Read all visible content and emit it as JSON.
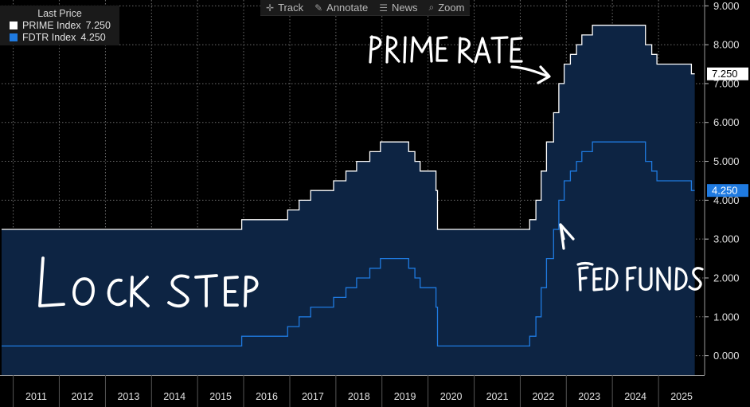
{
  "toolbar": {
    "items": [
      {
        "label": "Track",
        "icon": "crosshair-icon"
      },
      {
        "label": "Annotate",
        "icon": "pencil-icon"
      },
      {
        "label": "News",
        "icon": "news-icon"
      },
      {
        "label": "Zoom",
        "icon": "magnifier-icon"
      }
    ]
  },
  "legend": {
    "title": "Last Price",
    "entries": [
      {
        "name": "PRIME Index",
        "value": "7.250",
        "color": "#ffffff"
      },
      {
        "name": "FDTR Index",
        "value": "4.250",
        "color": "#1f7ae0"
      }
    ]
  },
  "annotations": {
    "prime_rate": "PRIME RATE",
    "fed_funds": "FED FUNDS",
    "lock_step": "LOCK STEP"
  },
  "chart_data": {
    "type": "line",
    "title": "",
    "xlabel": "",
    "ylabel": "",
    "x_ticks": [
      "2011",
      "2012",
      "2013",
      "2014",
      "2015",
      "2016",
      "2017",
      "2018",
      "2019",
      "2020",
      "2021",
      "2022",
      "2023",
      "2024",
      "2025"
    ],
    "y_ticks": [
      "0.000",
      "1.000",
      "2.000",
      "3.000",
      "4.000",
      "5.000",
      "6.000",
      "7.000",
      "8.000",
      "9.000"
    ],
    "ylim": [
      -0.5,
      9.15
    ],
    "xlim": [
      "2010-10-01",
      "2026-01-01"
    ],
    "grid": true,
    "last_price_labels": [
      {
        "series": "PRIME Index",
        "value": "7.250",
        "bg": "#ffffff",
        "fg": "#000000"
      },
      {
        "series": "FDTR Index",
        "value": "4.250",
        "bg": "#1f7ae0",
        "fg": "#ffffff"
      }
    ],
    "series": [
      {
        "name": "PRIME Index",
        "color": "#ffffff",
        "fill": "#0d2443",
        "points": [
          [
            "2010-10-01",
            3.25
          ],
          [
            "2015-12-17",
            3.5
          ],
          [
            "2016-12-15",
            3.75
          ],
          [
            "2017-03-16",
            4.0
          ],
          [
            "2017-06-15",
            4.25
          ],
          [
            "2017-12-14",
            4.5
          ],
          [
            "2018-03-22",
            4.75
          ],
          [
            "2018-06-14",
            5.0
          ],
          [
            "2018-09-27",
            5.25
          ],
          [
            "2018-12-20",
            5.5
          ],
          [
            "2019-08-01",
            5.25
          ],
          [
            "2019-09-19",
            5.0
          ],
          [
            "2019-10-31",
            4.75
          ],
          [
            "2020-03-04",
            4.25
          ],
          [
            "2020-03-16",
            3.25
          ],
          [
            "2022-03-17",
            3.5
          ],
          [
            "2022-05-05",
            4.0
          ],
          [
            "2022-06-16",
            4.75
          ],
          [
            "2022-07-28",
            5.5
          ],
          [
            "2022-09-22",
            6.25
          ],
          [
            "2022-11-03",
            7.0
          ],
          [
            "2022-12-15",
            7.5
          ],
          [
            "2023-02-02",
            7.75
          ],
          [
            "2023-03-23",
            8.0
          ],
          [
            "2023-05-04",
            8.25
          ],
          [
            "2023-07-27",
            8.5
          ],
          [
            "2024-09-19",
            8.0
          ],
          [
            "2024-11-08",
            7.75
          ],
          [
            "2024-12-19",
            7.5
          ],
          [
            "2025-09-18",
            7.25
          ],
          [
            "2025-10-15",
            7.25
          ]
        ]
      },
      {
        "name": "FDTR Index",
        "color": "#1f7ae0",
        "fill": "#0d2443",
        "points": [
          [
            "2010-10-01",
            0.25
          ],
          [
            "2015-12-17",
            0.5
          ],
          [
            "2016-12-15",
            0.75
          ],
          [
            "2017-03-16",
            1.0
          ],
          [
            "2017-06-15",
            1.25
          ],
          [
            "2017-12-14",
            1.5
          ],
          [
            "2018-03-22",
            1.75
          ],
          [
            "2018-06-14",
            2.0
          ],
          [
            "2018-09-27",
            2.25
          ],
          [
            "2018-12-20",
            2.5
          ],
          [
            "2019-08-01",
            2.25
          ],
          [
            "2019-09-19",
            2.0
          ],
          [
            "2019-10-31",
            1.75
          ],
          [
            "2020-03-04",
            1.25
          ],
          [
            "2020-03-16",
            0.25
          ],
          [
            "2022-03-17",
            0.5
          ],
          [
            "2022-05-05",
            1.0
          ],
          [
            "2022-06-16",
            1.75
          ],
          [
            "2022-07-28",
            2.5
          ],
          [
            "2022-09-22",
            3.25
          ],
          [
            "2022-11-03",
            4.0
          ],
          [
            "2022-12-15",
            4.5
          ],
          [
            "2023-02-02",
            4.75
          ],
          [
            "2023-03-23",
            5.0
          ],
          [
            "2023-05-04",
            5.25
          ],
          [
            "2023-07-27",
            5.5
          ],
          [
            "2024-09-19",
            5.0
          ],
          [
            "2024-11-08",
            4.75
          ],
          [
            "2024-12-19",
            4.5
          ],
          [
            "2025-09-18",
            4.25
          ],
          [
            "2025-10-15",
            4.25
          ]
        ]
      }
    ]
  }
}
